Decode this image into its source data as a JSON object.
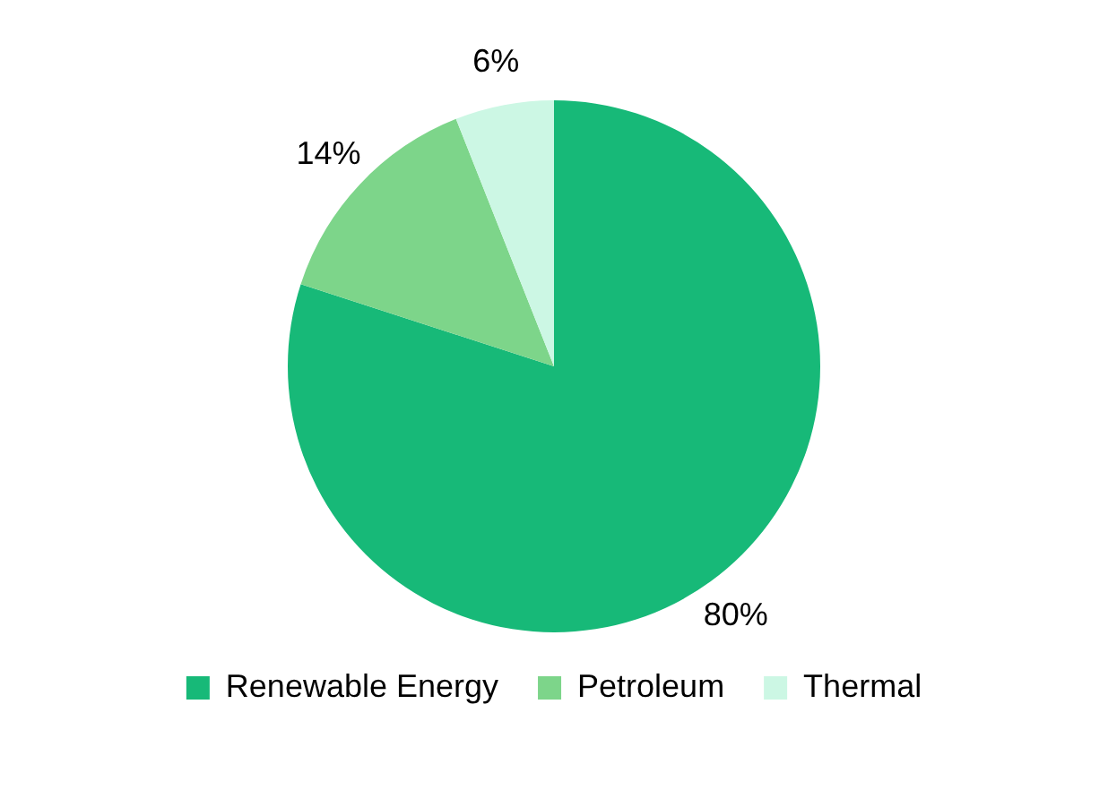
{
  "chart_data": {
    "type": "pie",
    "categories": [
      "Renewable Energy",
      "Petroleum",
      "Thermal"
    ],
    "values": [
      80,
      14,
      6
    ],
    "colors": [
      "#17b978",
      "#7dd58a",
      "#ccf7e4"
    ],
    "value_labels": [
      "80%",
      "14%",
      "6%"
    ],
    "legend": "bottom"
  }
}
